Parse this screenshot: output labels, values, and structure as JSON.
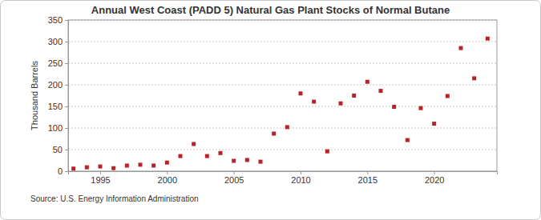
{
  "chart_data": {
    "type": "scatter",
    "title": "Annual West Coast (PADD 5) Natural Gas Plant Stocks of Normal Butane",
    "y_label": "Thousand Barrels",
    "source": "Source: U.S. Energy Information Administration",
    "x": [
      1993,
      1994,
      1995,
      1996,
      1997,
      1998,
      1999,
      2000,
      2001,
      2002,
      2003,
      2004,
      2005,
      2006,
      2007,
      2008,
      2009,
      2010,
      2011,
      2012,
      2013,
      2014,
      2015,
      2016,
      2017,
      2018,
      2019,
      2020,
      2021,
      2022,
      2023,
      2024
    ],
    "values": [
      6,
      9,
      11,
      7,
      13,
      15,
      13,
      20,
      35,
      63,
      35,
      42,
      24,
      26,
      22,
      87,
      102,
      180,
      161,
      46,
      157,
      175,
      207,
      186,
      149,
      72,
      146,
      110,
      174,
      285,
      215,
      307
    ],
    "color": "#b8232a",
    "marker": "square",
    "xlim": [
      1992.6,
      2024.7
    ],
    "xticks": [
      1995,
      2000,
      2005,
      2010,
      2015,
      2020
    ],
    "ylim": [
      0,
      350
    ],
    "yticks": [
      0,
      50,
      100,
      150,
      200,
      250,
      300,
      350
    ],
    "grid": true
  }
}
